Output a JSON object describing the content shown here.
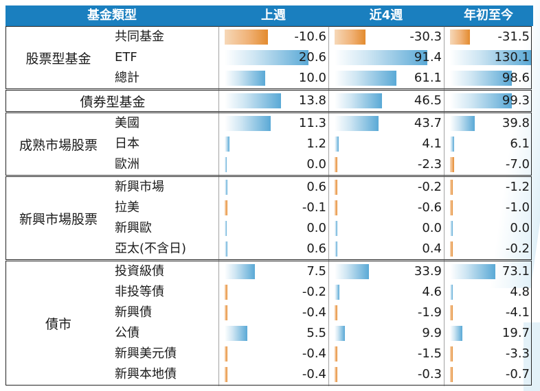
{
  "header": {
    "type_label": "基金類型",
    "col1": "上週",
    "col2": "近4週",
    "col3": "年初至今"
  },
  "groups": [
    {
      "label": "股票型基金",
      "rows": [
        {
          "name": "共同基金",
          "values": [
            "-10.6",
            "-30.3",
            "-31.5"
          ]
        },
        {
          "name": "ETF",
          "values": [
            "20.6",
            "91.4",
            "130.1"
          ]
        },
        {
          "name": "總計",
          "values": [
            "10.0",
            "61.1",
            "98.6"
          ]
        }
      ]
    },
    {
      "label": "債券型基金",
      "rows": [
        {
          "name": "",
          "values": [
            "13.8",
            "46.5",
            "99.3"
          ]
        }
      ]
    },
    {
      "label": "成熟市場股票",
      "rows": [
        {
          "name": "美國",
          "values": [
            "11.3",
            "43.7",
            "39.8"
          ]
        },
        {
          "name": "日本",
          "values": [
            "1.2",
            "4.1",
            "6.1"
          ]
        },
        {
          "name": "歐洲",
          "values": [
            "0.0",
            "-2.3",
            "-7.0"
          ]
        }
      ]
    },
    {
      "label": "新興市場股票",
      "rows": [
        {
          "name": "新興市場",
          "values": [
            "0.6",
            "-0.2",
            "-1.2"
          ]
        },
        {
          "name": "拉美",
          "values": [
            "-0.1",
            "-0.6",
            "-1.0"
          ]
        },
        {
          "name": "新興歐",
          "values": [
            "0.0",
            "0.0",
            "0.0"
          ]
        },
        {
          "name": "亞太(不含日)",
          "values": [
            "0.6",
            "0.4",
            "-0.2"
          ]
        }
      ]
    },
    {
      "label": "債市",
      "rows": [
        {
          "name": "投資級債",
          "values": [
            "7.5",
            "33.9",
            "73.1"
          ]
        },
        {
          "name": "非投等債",
          "values": [
            "-0.2",
            "4.6",
            "4.8"
          ]
        },
        {
          "name": "新興債",
          "values": [
            "-0.4",
            "-1.9",
            "-4.1"
          ]
        },
        {
          "name": "公債",
          "values": [
            "5.5",
            "9.9",
            "19.7"
          ]
        },
        {
          "name": "新興美元債",
          "values": [
            "-0.4",
            "-1.5",
            "-3.3"
          ]
        },
        {
          "name": "新興本地債",
          "values": [
            "-0.4",
            "-0.3",
            "-0.7"
          ]
        }
      ]
    }
  ],
  "colors": {
    "header": "#1a7fbf",
    "positive_bar": "#5aa9d6",
    "negative_bar": "#e38b2f"
  }
}
